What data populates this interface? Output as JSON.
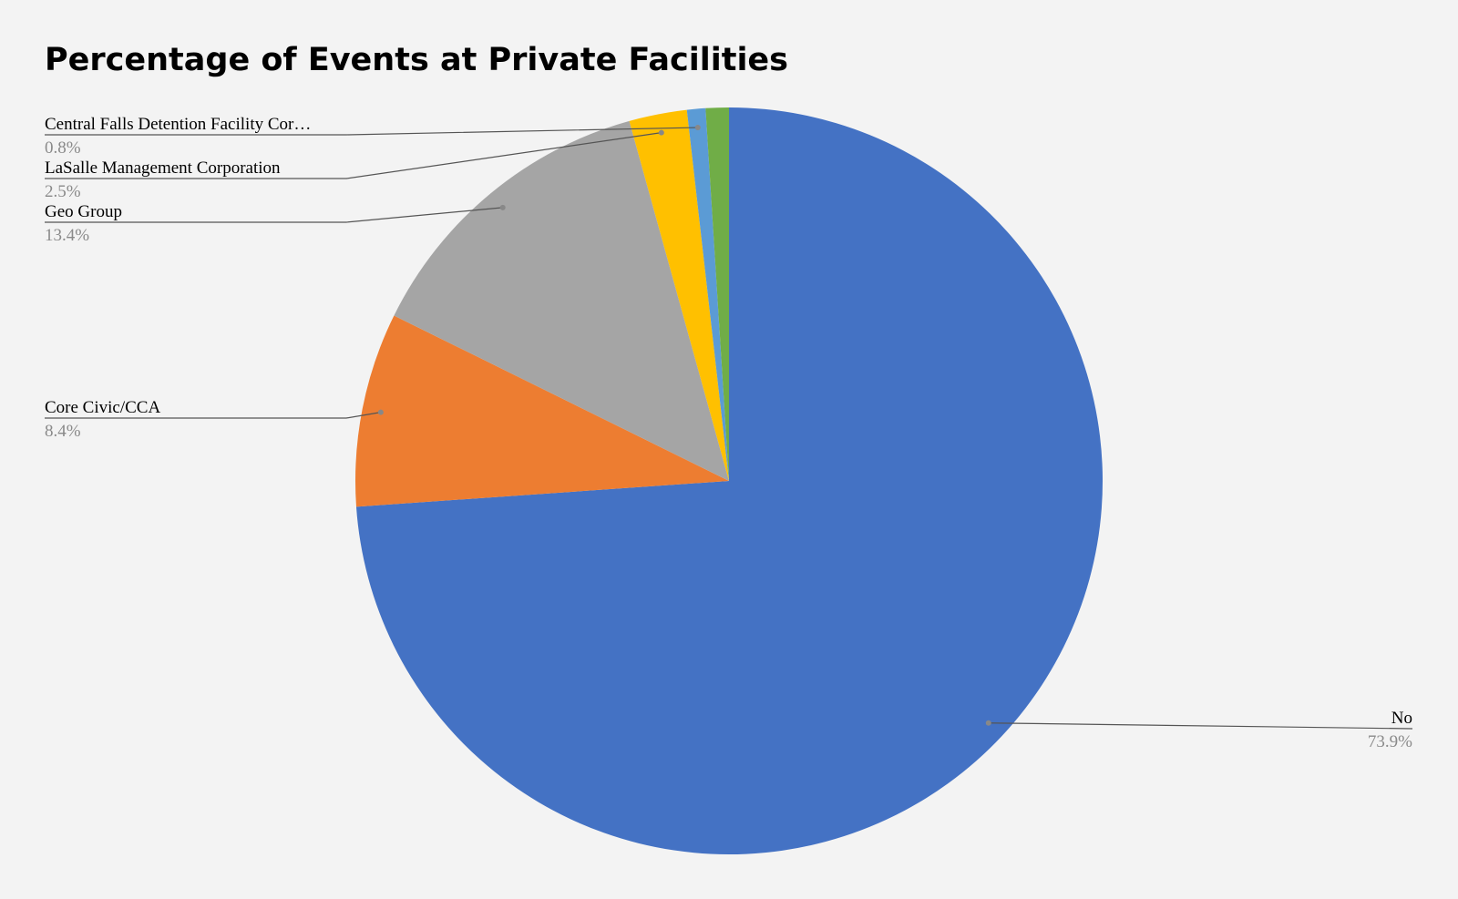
{
  "chart_data": {
    "type": "pie",
    "title": "Percentage of Events at Private Facilities",
    "categories": [
      "No",
      "Core Civic/CCA",
      "Geo Group",
      "LaSalle Management Corporation",
      "Central Falls Detention Facility Cor…",
      null
    ],
    "values": [
      73.9,
      8.4,
      13.4,
      2.5,
      0.8,
      1.0
    ],
    "value_labels": [
      "73.9%",
      "8.4%",
      "13.4%",
      "2.5%",
      "0.8%",
      null
    ],
    "colors": [
      "#4472c4",
      "#ed7d31",
      "#a5a5a5",
      "#ffc000",
      "#5b9bd5",
      "#70ad47"
    ],
    "start_angle": 0,
    "direction": "clockwise"
  }
}
